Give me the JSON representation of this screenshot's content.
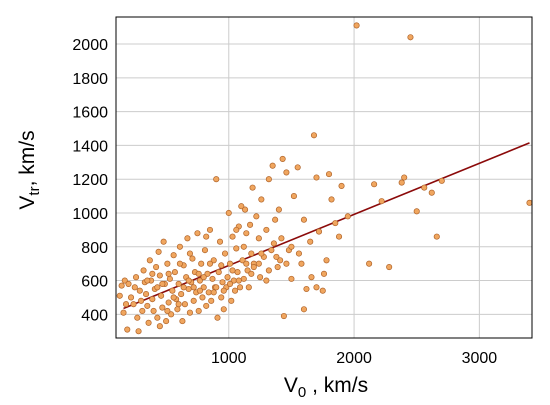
{
  "chart_data": {
    "type": "scatter",
    "title": "",
    "xlabel": {
      "main": "V",
      "sub": "0",
      "rest": " , km/s"
    },
    "ylabel": {
      "main": "V",
      "sub": "tr",
      "rest": ", km/s"
    },
    "xlim": [
      100,
      3420
    ],
    "ylim": [
      260,
      2160
    ],
    "x_ticks": [
      1000,
      2000,
      3000
    ],
    "y_ticks": [
      400,
      600,
      800,
      1000,
      1200,
      1400,
      1600,
      1800,
      2000
    ],
    "grid": true,
    "legend": "none",
    "colors": {
      "point_fill": "#f0a65f",
      "point_stroke": "#b0642a",
      "fit_line": "#8b0a0a",
      "grid": "#cccccc",
      "frame": "#000000"
    },
    "fit_line": {
      "x": [
        160,
        3400
      ],
      "y": [
        435,
        1415
      ]
    },
    "series": [
      {
        "values": [
          [
            130,
            510
          ],
          [
            145,
            570
          ],
          [
            160,
            410
          ],
          [
            170,
            600
          ],
          [
            180,
            460
          ],
          [
            190,
            310
          ],
          [
            200,
            580
          ],
          [
            220,
            500
          ],
          [
            240,
            460
          ],
          [
            250,
            560
          ],
          [
            260,
            620
          ],
          [
            270,
            380
          ],
          [
            280,
            300
          ],
          [
            290,
            540
          ],
          [
            300,
            480
          ],
          [
            310,
            420
          ],
          [
            320,
            660
          ],
          [
            330,
            590
          ],
          [
            340,
            520
          ],
          [
            350,
            450
          ],
          [
            360,
            350
          ],
          [
            370,
            720
          ],
          [
            380,
            600
          ],
          [
            390,
            490
          ],
          [
            400,
            420
          ],
          [
            410,
            550
          ],
          [
            420,
            680
          ],
          [
            430,
            380
          ],
          [
            440,
            770
          ],
          [
            450,
            630
          ],
          [
            460,
            510
          ],
          [
            470,
            440
          ],
          [
            480,
            830
          ],
          [
            490,
            580
          ],
          [
            500,
            360
          ],
          [
            510,
            700
          ],
          [
            520,
            470
          ],
          [
            530,
            610
          ],
          [
            540,
            400
          ],
          [
            550,
            540
          ],
          [
            560,
            750
          ],
          [
            570,
            650
          ],
          [
            580,
            490
          ],
          [
            590,
            430
          ],
          [
            600,
            580
          ],
          [
            610,
            800
          ],
          [
            620,
            520
          ],
          [
            630,
            360
          ],
          [
            640,
            690
          ],
          [
            650,
            460
          ],
          [
            660,
            620
          ],
          [
            670,
            850
          ],
          [
            680,
            550
          ],
          [
            690,
            410
          ],
          [
            700,
            590
          ],
          [
            710,
            730
          ],
          [
            720,
            480
          ],
          [
            730,
            650
          ],
          [
            740,
            530
          ],
          [
            750,
            880
          ],
          [
            760,
            420
          ],
          [
            770,
            600
          ],
          [
            780,
            700
          ],
          [
            790,
            500
          ],
          [
            800,
            560
          ],
          [
            810,
            780
          ],
          [
            820,
            450
          ],
          [
            830,
            640
          ],
          [
            840,
            530
          ],
          [
            850,
            900
          ],
          [
            860,
            480
          ],
          [
            870,
            610
          ],
          [
            880,
            720
          ],
          [
            890,
            560
          ],
          [
            900,
            1200
          ],
          [
            910,
            380
          ],
          [
            920,
            650
          ],
          [
            930,
            830
          ],
          [
            940,
            500
          ],
          [
            950,
            590
          ],
          [
            960,
            430
          ],
          [
            970,
            760
          ],
          [
            980,
            560
          ],
          [
            990,
            620
          ],
          [
            1000,
            1000
          ],
          [
            1010,
            700
          ],
          [
            1020,
            480
          ],
          [
            1030,
            860
          ],
          [
            1040,
            600
          ],
          [
            1050,
            540
          ],
          [
            1060,
            790
          ],
          [
            1070,
            650
          ],
          [
            1080,
            920
          ],
          [
            1090,
            560
          ],
          [
            1100,
            1040
          ],
          [
            1110,
            720
          ],
          [
            1120,
            610
          ],
          [
            1130,
            1020
          ],
          [
            1140,
            880
          ],
          [
            1150,
            660
          ],
          [
            1160,
            560
          ],
          [
            1170,
            930
          ],
          [
            1180,
            760
          ],
          [
            1190,
            1150
          ],
          [
            1200,
            700
          ],
          [
            1220,
            980
          ],
          [
            1240,
            850
          ],
          [
            1250,
            620
          ],
          [
            1260,
            1080
          ],
          [
            1280,
            740
          ],
          [
            1300,
            900
          ],
          [
            1320,
            1200
          ],
          [
            1340,
            780
          ],
          [
            1350,
            1280
          ],
          [
            1370,
            960
          ],
          [
            1390,
            680
          ],
          [
            1400,
            1020
          ],
          [
            1420,
            850
          ],
          [
            1430,
            1320
          ],
          [
            1440,
            390
          ],
          [
            1460,
            1240
          ],
          [
            1480,
            780
          ],
          [
            1500,
            610
          ],
          [
            1520,
            1100
          ],
          [
            1550,
            1270
          ],
          [
            1580,
            700
          ],
          [
            1600,
            960
          ],
          [
            1620,
            550
          ],
          [
            1650,
            830
          ],
          [
            1680,
            1460
          ],
          [
            1700,
            1210
          ],
          [
            1720,
            890
          ],
          [
            1750,
            540
          ],
          [
            1780,
            720
          ],
          [
            1800,
            1230
          ],
          [
            1820,
            1080
          ],
          [
            1850,
            940
          ],
          [
            1880,
            860
          ],
          [
            1900,
            1160
          ],
          [
            1950,
            980
          ],
          [
            2020,
            2110
          ],
          [
            2120,
            700
          ],
          [
            2160,
            1170
          ],
          [
            2220,
            1070
          ],
          [
            2280,
            680
          ],
          [
            2380,
            1180
          ],
          [
            2400,
            1210
          ],
          [
            2450,
            2040
          ],
          [
            2500,
            1010
          ],
          [
            2560,
            1150
          ],
          [
            2620,
            1120
          ],
          [
            2660,
            860
          ],
          [
            2700,
            1190
          ],
          [
            3400,
            1060
          ],
          [
            450,
            330
          ],
          [
            520,
            640
          ],
          [
            610,
            700
          ],
          [
            690,
            760
          ],
          [
            760,
            640
          ],
          [
            820,
            860
          ],
          [
            880,
            530
          ],
          [
            940,
            690
          ],
          [
            1010,
            580
          ],
          [
            1060,
            900
          ],
          [
            1120,
            800
          ],
          [
            1180,
            640
          ],
          [
            1240,
            700
          ],
          [
            1300,
            600
          ],
          [
            1360,
            820
          ],
          [
            1410,
            720
          ],
          [
            1500,
            800
          ],
          [
            1600,
            430
          ],
          [
            1700,
            560
          ],
          [
            350,
            600
          ],
          [
            390,
            640
          ],
          [
            430,
            560
          ],
          [
            470,
            580
          ],
          [
            510,
            420
          ],
          [
            560,
            500
          ],
          [
            600,
            460
          ],
          [
            640,
            560
          ],
          [
            680,
            600
          ],
          [
            720,
            560
          ],
          [
            770,
            540
          ],
          [
            800,
            620
          ],
          [
            850,
            700
          ],
          [
            900,
            560
          ],
          [
            960,
            540
          ],
          [
            1030,
            660
          ],
          [
            1080,
            600
          ],
          [
            1140,
            700
          ],
          [
            1200,
            680
          ],
          [
            1260,
            760
          ],
          [
            1320,
            660
          ],
          [
            1380,
            740
          ],
          [
            1460,
            700
          ],
          [
            1560,
            760
          ],
          [
            1660,
            620
          ],
          [
            1760,
            640
          ]
        ]
      }
    ]
  }
}
